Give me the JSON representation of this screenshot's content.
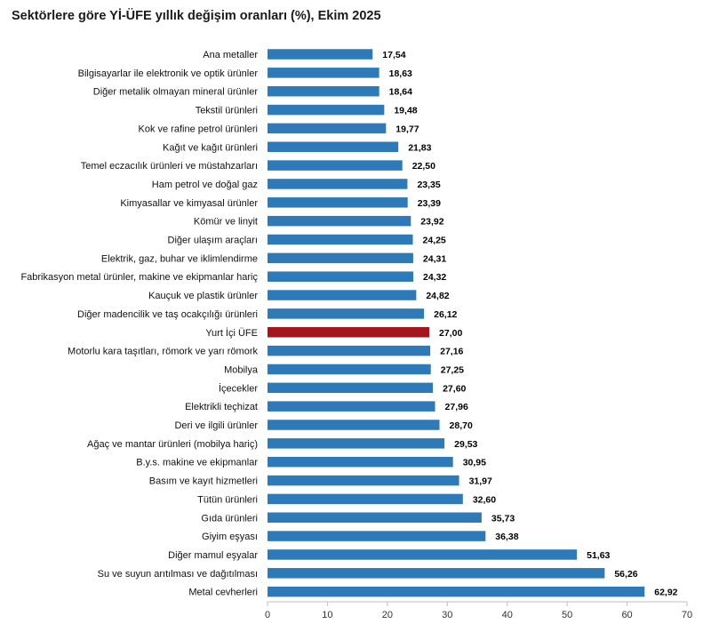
{
  "chart_data": {
    "type": "bar",
    "orientation": "horizontal",
    "title": "Sektörlere göre Yİ-ÜFE yıllık değişim oranları (%), Ekim 2025",
    "xlabel": "",
    "ylabel": "",
    "xlim": [
      0,
      70
    ],
    "x_ticks": [
      "0",
      "10",
      "20",
      "30",
      "40",
      "50",
      "60",
      "70"
    ],
    "grid": false,
    "legend": "none",
    "bar_color": "#2e7ab8",
    "highlight_color": "#a3161b",
    "highlight_category": "Yurt İçi ÜFE",
    "categories": [
      "Ana metaller",
      "Bilgisayarlar ile elektronik ve optik ürünler",
      "Diğer metalik olmayan mineral ürünler",
      "Tekstil ürünleri",
      "Kok ve rafine petrol ürünleri",
      "Kağıt ve kağıt ürünleri",
      "Temel eczacılık ürünleri ve müstahzarları",
      "Ham petrol ve doğal gaz",
      "Kimyasallar ve kimyasal ürünler",
      "Kömür ve linyit",
      "Diğer ulaşım araçları",
      "Elektrik, gaz, buhar ve iklimlendirme",
      "Fabrikasyon metal ürünler, makine ve ekipmanlar hariç",
      "Kauçuk ve plastik ürünler",
      "Diğer madencilik ve taş ocakçılığı ürünleri",
      "Yurt İçi ÜFE",
      "Motorlu kara taşıtları, römork ve yarı römork",
      "Mobilya",
      "İçecekler",
      "Elektrikli teçhizat",
      "Deri ve ilgili ürünler",
      "Ağaç ve mantar ürünleri (mobilya hariç)",
      "B.y.s. makine ve ekipmanlar",
      "Basım ve kayıt hizmetleri",
      "Tütün ürünleri",
      "Gıda ürünleri",
      "Giyim eşyası",
      "Diğer mamul eşyalar",
      "Su ve suyun arıtılması ve dağıtılması",
      "Metal cevherleri"
    ],
    "values": [
      17.54,
      18.63,
      18.64,
      19.48,
      19.77,
      21.83,
      22.5,
      23.35,
      23.39,
      23.92,
      24.25,
      24.31,
      24.32,
      24.82,
      26.12,
      27.0,
      27.16,
      27.25,
      27.6,
      27.96,
      28.7,
      29.53,
      30.95,
      31.97,
      32.6,
      35.73,
      36.38,
      51.63,
      56.26,
      62.92
    ],
    "value_labels": [
      "17,54",
      "18,63",
      "18,64",
      "19,48",
      "19,77",
      "21,83",
      "22,50",
      "23,35",
      "23,39",
      "23,92",
      "24,25",
      "24,31",
      "24,32",
      "24,82",
      "26,12",
      "27,00",
      "27,16",
      "27,25",
      "27,60",
      "27,96",
      "28,70",
      "29,53",
      "30,95",
      "31,97",
      "32,60",
      "35,73",
      "36,38",
      "51,63",
      "56,26",
      "62,92"
    ]
  }
}
